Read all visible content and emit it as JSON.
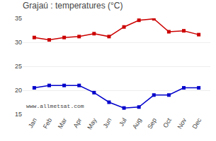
{
  "chart_data": {
    "type": "line",
    "title": "Grajaú : temperatures (°C)",
    "categories": [
      "Jan",
      "Feb",
      "Mar",
      "Apr",
      "May",
      "Jun",
      "Jul",
      "Aug",
      "Sep",
      "Oct",
      "Nov",
      "Dec"
    ],
    "series": [
      {
        "color": "#cc0000",
        "values": [
          31.0,
          30.5,
          31.0,
          31.2,
          31.8,
          31.2,
          33.2,
          34.6,
          34.9,
          32.2,
          32.4,
          31.6
        ]
      },
      {
        "color": "#0000cc",
        "values": [
          20.5,
          21.0,
          21.0,
          21.0,
          19.5,
          17.5,
          16.3,
          16.5,
          19.0,
          19.0,
          20.5,
          20.5
        ]
      }
    ],
    "ylim": [
      15,
      35
    ],
    "yticks": [
      15,
      20,
      25,
      30,
      35
    ],
    "grid": true,
    "marker": "square",
    "annotations": [
      "www.allmetsat.com"
    ]
  }
}
